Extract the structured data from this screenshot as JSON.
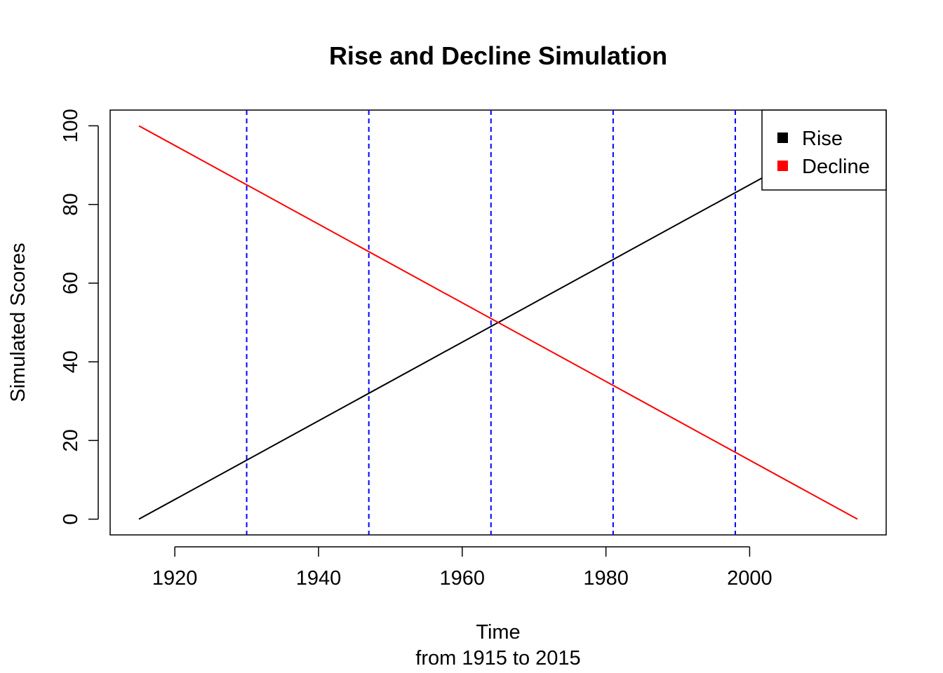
{
  "chart_data": {
    "type": "line",
    "title": "Rise and Decline Simulation",
    "xlabel": "Time",
    "xlabel_sub": "from 1915 to 2015",
    "ylabel": "Simulated Scores",
    "xlim": [
      1911,
      2019
    ],
    "ylim": [
      -4,
      104
    ],
    "x_ticks": [
      1920,
      1940,
      1960,
      1980,
      2000
    ],
    "y_ticks": [
      0,
      20,
      40,
      60,
      80,
      100
    ],
    "grid": false,
    "legend_position": "top-right",
    "series": [
      {
        "name": "Rise",
        "color": "#000000",
        "x": [
          1915,
          2015
        ],
        "values": [
          0,
          100
        ]
      },
      {
        "name": "Decline",
        "color": "#ff0000",
        "x": [
          1915,
          2015
        ],
        "values": [
          100,
          0
        ]
      }
    ],
    "reference_lines": {
      "orientation": "vertical",
      "style": "dashed",
      "color": "#0000ff",
      "x": [
        1930,
        1947,
        1964,
        1981,
        1998
      ]
    }
  }
}
